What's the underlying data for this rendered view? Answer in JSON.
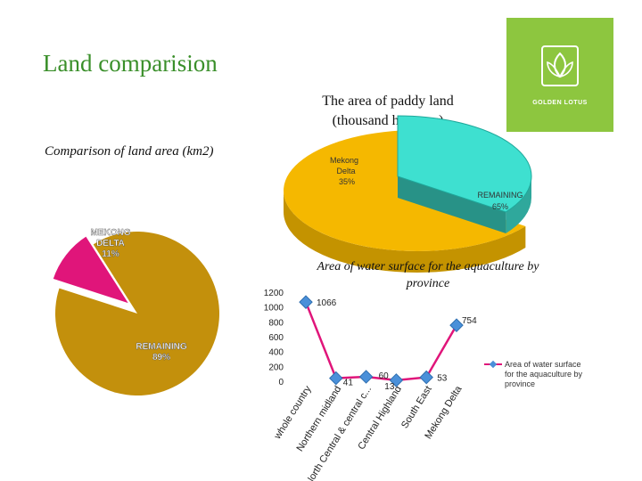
{
  "page": {
    "title": "Land comparision"
  },
  "logo": {
    "text": "GOLDEN LOTUS"
  },
  "chart_data": [
    {
      "type": "pie",
      "title": "The area of paddy land (thousand hectares)",
      "categories": [
        "Mekong Delta",
        "REMAINING"
      ],
      "values": [
        35,
        65
      ],
      "labels": [
        {
          "name": "Mekong",
          "name2": "Delta",
          "pct": "35%"
        },
        {
          "name": "REMAINING",
          "pct": "65%"
        }
      ],
      "colors": [
        "#3ee0d0",
        "#f5b800"
      ]
    },
    {
      "type": "pie",
      "title": "Comparison of land area (km2)",
      "categories": [
        "MEKONG DELTA",
        "REMAINING"
      ],
      "values": [
        11,
        89
      ],
      "labels": [
        {
          "name": "MEKONG",
          "name2": "DELTA",
          "pct": "11%"
        },
        {
          "name": "REMAINING",
          "pct": "89%"
        }
      ],
      "colors": [
        "#e0157a",
        "#c3900c"
      ]
    },
    {
      "type": "line",
      "title": "Area of water surface for the aquaculture by province",
      "categories": [
        "whole country",
        "Northern midland",
        "North Central & central c...",
        "Central Highland",
        "South East",
        "Mekong Delta"
      ],
      "series": [
        {
          "name": "Area of water surface for the aquaculture by province",
          "values": [
            1066,
            41,
            60,
            13,
            53,
            754
          ]
        }
      ],
      "value_labels": [
        "1066",
        "41",
        "60",
        "13",
        "53",
        "754"
      ],
      "yticks": [
        "1200",
        "1000",
        "800",
        "600",
        "400",
        "200",
        "0"
      ],
      "ylim": [
        0,
        1200
      ],
      "line_color": "#e0157a",
      "marker_color": "#4a90d9"
    }
  ]
}
